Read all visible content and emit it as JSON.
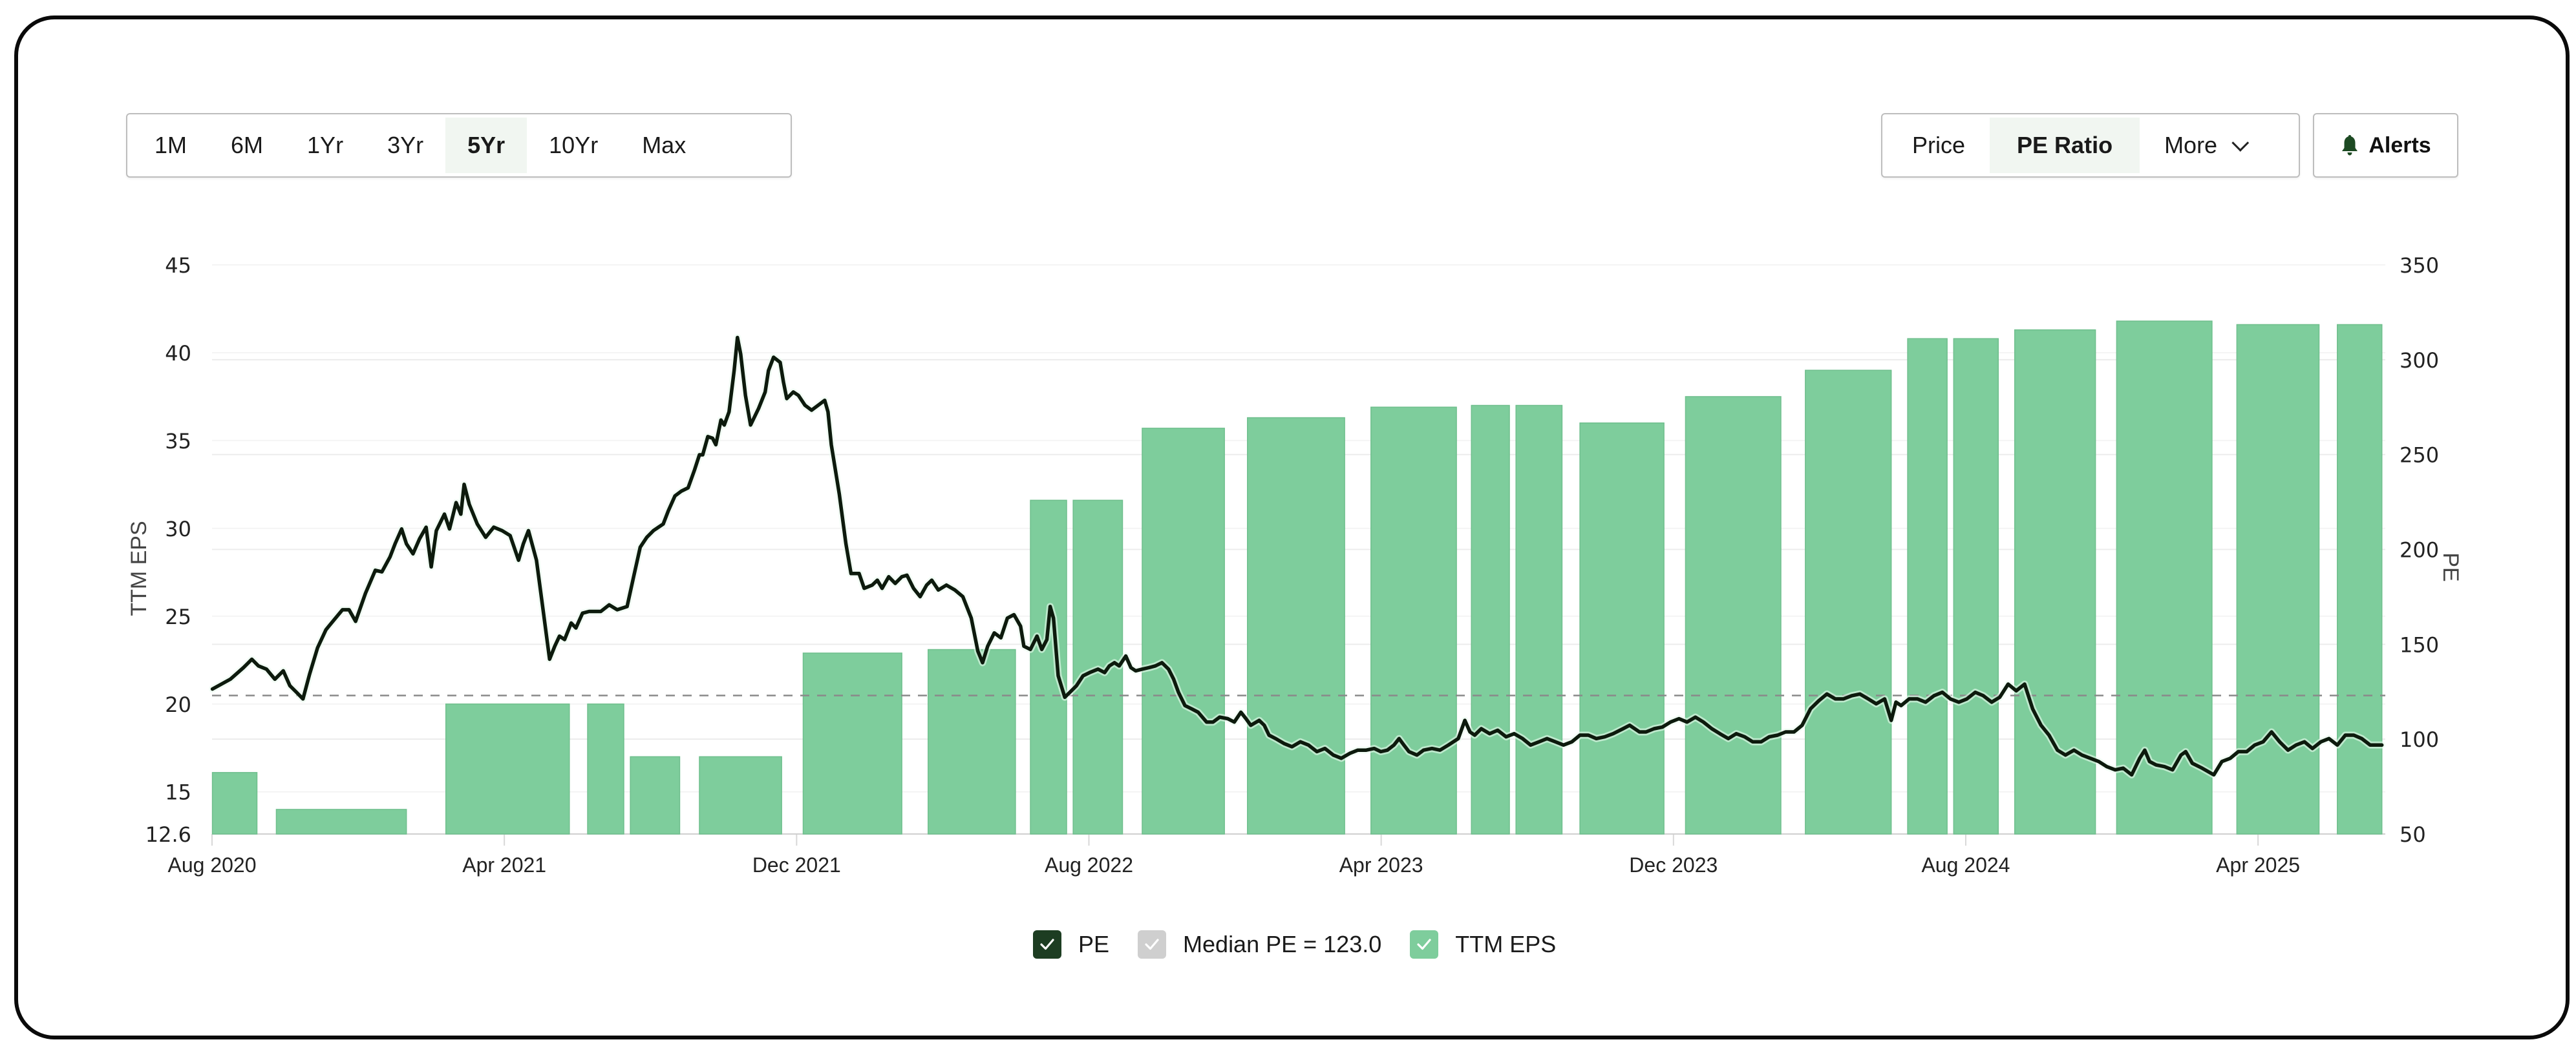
{
  "time_range": {
    "buttons": [
      "1M",
      "6M",
      "1Yr",
      "3Yr",
      "5Yr",
      "10Yr",
      "Max"
    ],
    "active": "5Yr"
  },
  "metric_tabs": {
    "price": "Price",
    "pe_ratio": "PE Ratio",
    "more": "More",
    "active": "PE Ratio"
  },
  "alerts": {
    "label": "Alerts",
    "icon": "bell-icon"
  },
  "legend": {
    "pe": "PE",
    "median": "Median PE = 123.0",
    "eps": "TTM EPS"
  },
  "colors": {
    "bar": "#7ecd9c",
    "line": "#0d1a0d",
    "median": "#8a8a8a",
    "legend_pe": "#1d3d22",
    "legend_median": "#cfcfcf",
    "legend_eps": "#7ecd9c",
    "active_tab_bg": "#f1f6f1",
    "bell": "#1d4a23"
  },
  "chart_data": {
    "type": "bar+line",
    "title": "",
    "xlabel": "",
    "ylabel_left": "TTM EPS",
    "ylabel_right": "PE",
    "x_ticks": [
      "Aug 2020",
      "Apr 2021",
      "Dec 2021",
      "Aug 2022",
      "Apr 2023",
      "Dec 2023",
      "Aug 2024",
      "Apr 2025"
    ],
    "x_tick_months": [
      0,
      8,
      16,
      24,
      32,
      40,
      48,
      56
    ],
    "x_units": "months since Aug 2020",
    "y_left_ticks": [
      "45",
      "40",
      "35",
      "30",
      "25",
      "20",
      "15",
      "12.6"
    ],
    "y_left_values": [
      45,
      40,
      35,
      30,
      25,
      20,
      15,
      12.6
    ],
    "y_left_range": [
      12.6,
      45
    ],
    "y_right_ticks": [
      "350",
      "300",
      "250",
      "200",
      "150",
      "100",
      "50"
    ],
    "y_right_values": [
      350,
      300,
      250,
      200,
      150,
      100,
      50
    ],
    "y_right_range": [
      50,
      350
    ],
    "grid": true,
    "legend_position": "bottom",
    "median_pe": 123.0,
    "series": [
      {
        "name": "TTM EPS",
        "type": "bar",
        "axis": "left",
        "bars": [
          {
            "start": 0.01,
            "end": 1.23,
            "value": 16.1
          },
          {
            "start": 1.76,
            "end": 5.32,
            "value": 14.0
          },
          {
            "start": 6.4,
            "end": 9.78,
            "value": 20.0
          },
          {
            "start": 10.28,
            "end": 11.27,
            "value": 20.0
          },
          {
            "start": 11.45,
            "end": 12.8,
            "value": 17.0
          },
          {
            "start": 13.34,
            "end": 15.59,
            "value": 17.0
          },
          {
            "start": 16.18,
            "end": 18.88,
            "value": 22.9
          },
          {
            "start": 19.6,
            "end": 21.99,
            "value": 23.1
          },
          {
            "start": 22.4,
            "end": 23.39,
            "value": 31.6
          },
          {
            "start": 23.57,
            "end": 24.92,
            "value": 31.6
          },
          {
            "start": 25.46,
            "end": 27.71,
            "value": 35.7
          },
          {
            "start": 28.34,
            "end": 31.0,
            "value": 36.3
          },
          {
            "start": 31.72,
            "end": 34.06,
            "value": 36.9
          },
          {
            "start": 34.47,
            "end": 35.51,
            "value": 37.0
          },
          {
            "start": 35.69,
            "end": 36.95,
            "value": 37.0
          },
          {
            "start": 37.44,
            "end": 39.74,
            "value": 36.0
          },
          {
            "start": 40.33,
            "end": 42.94,
            "value": 37.5
          },
          {
            "start": 43.61,
            "end": 45.96,
            "value": 39.0
          },
          {
            "start": 46.41,
            "end": 47.49,
            "value": 40.8
          },
          {
            "start": 47.67,
            "end": 48.89,
            "value": 40.8
          },
          {
            "start": 49.34,
            "end": 51.55,
            "value": 41.3
          },
          {
            "start": 52.13,
            "end": 54.74,
            "value": 41.8
          },
          {
            "start": 55.42,
            "end": 57.67,
            "value": 41.6
          },
          {
            "start": 58.17,
            "end": 59.39,
            "value": 41.6
          }
        ]
      },
      {
        "name": "PE",
        "type": "line",
        "axis": "right",
        "x": [
          0.01,
          0.5,
          0.86,
          1.09,
          1.27,
          1.49,
          1.72,
          1.95,
          2.13,
          2.31,
          2.49,
          2.67,
          2.89,
          3.12,
          3.34,
          3.57,
          3.75,
          3.93,
          4.2,
          4.47,
          4.65,
          4.87,
          5.01,
          5.19,
          5.32,
          5.5,
          5.68,
          5.86,
          6.0,
          6.14,
          6.36,
          6.5,
          6.68,
          6.81,
          6.9,
          7.04,
          7.26,
          7.49,
          7.71,
          7.94,
          8.16,
          8.39,
          8.52,
          8.66,
          8.88,
          9.06,
          9.24,
          9.38,
          9.51,
          9.65,
          9.83,
          9.96,
          10.14,
          10.32,
          10.64,
          10.87,
          11.09,
          11.36,
          11.54,
          11.72,
          11.9,
          12.08,
          12.35,
          12.49,
          12.67,
          12.85,
          13.03,
          13.21,
          13.34,
          13.43,
          13.57,
          13.7,
          13.79,
          13.93,
          14.02,
          14.15,
          14.29,
          14.38,
          14.47,
          14.6,
          14.74,
          14.96,
          15.14,
          15.23,
          15.37,
          15.55,
          15.64,
          15.73,
          15.91,
          16.05,
          16.23,
          16.41,
          16.59,
          16.77,
          16.86,
          16.95,
          17.17,
          17.35,
          17.49,
          17.71,
          17.85,
          18.07,
          18.21,
          18.34,
          18.52,
          18.7,
          18.88,
          19.02,
          19.2,
          19.38,
          19.56,
          19.7,
          19.88,
          20.1,
          20.33,
          20.55,
          20.78,
          20.96,
          21.09,
          21.23,
          21.41,
          21.59,
          21.77,
          21.95,
          22.13,
          22.22,
          22.4,
          22.58,
          22.71,
          22.85,
          22.94,
          23.03,
          23.16,
          23.34,
          23.48,
          23.66,
          23.84,
          24.02,
          24.25,
          24.43,
          24.56,
          24.7,
          24.83,
          25.01,
          25.15,
          25.28,
          25.46,
          25.64,
          25.82,
          26.0,
          26.18,
          26.32,
          26.45,
          26.63,
          26.81,
          26.99,
          27.22,
          27.4,
          27.58,
          27.8,
          27.98,
          28.16,
          28.3,
          28.43,
          28.66,
          28.8,
          28.93,
          29.11,
          29.34,
          29.56,
          29.79,
          30.01,
          30.24,
          30.46,
          30.69,
          30.91,
          31.14,
          31.36,
          31.59,
          31.81,
          31.99,
          32.17,
          32.35,
          32.49,
          32.62,
          32.76,
          32.98,
          33.16,
          33.39,
          33.61,
          33.84,
          34.11,
          34.29,
          34.43,
          34.56,
          34.74,
          34.97,
          35.19,
          35.42,
          35.64,
          35.87,
          36.09,
          36.32,
          36.54,
          36.77,
          36.99,
          37.22,
          37.44,
          37.67,
          37.89,
          38.12,
          38.35,
          38.62,
          38.8,
          39.07,
          39.25,
          39.47,
          39.7,
          39.92,
          40.15,
          40.37,
          40.6,
          40.82,
          41.05,
          41.27,
          41.5,
          41.72,
          41.95,
          42.17,
          42.4,
          42.62,
          42.85,
          43.07,
          43.3,
          43.52,
          43.75,
          43.98,
          44.2,
          44.43,
          44.65,
          44.88,
          45.1,
          45.33,
          45.55,
          45.78,
          45.96,
          46.09,
          46.23,
          46.45,
          46.68,
          46.9,
          47.13,
          47.36,
          47.58,
          47.81,
          48.03,
          48.26,
          48.48,
          48.71,
          48.93,
          49.16,
          49.38,
          49.61,
          49.83,
          50.06,
          50.28,
          50.51,
          50.73,
          50.96,
          51.18,
          51.41,
          51.64,
          51.86,
          52.09,
          52.31,
          52.54,
          52.76,
          52.9,
          53.03,
          53.21,
          53.44,
          53.66,
          53.89,
          54.02,
          54.2,
          54.47,
          54.79,
          55.01,
          55.24,
          55.46,
          55.69,
          55.91,
          56.14,
          56.37,
          56.59,
          56.82,
          57.04,
          57.27,
          57.49,
          57.72,
          57.94,
          58.17,
          58.39,
          58.62,
          58.84,
          59.07,
          59.39
        ],
        "values": [
          126.4,
          131.6,
          137.7,
          142.1,
          138.6,
          136.9,
          131.6,
          136.0,
          128.2,
          124.7,
          121.2,
          134.2,
          148.2,
          157.7,
          162.9,
          168.2,
          168.2,
          162.1,
          176.9,
          189.0,
          188.2,
          196.0,
          203.0,
          210.8,
          203.0,
          197.7,
          205.6,
          211.7,
          190.8,
          209.9,
          218.6,
          210.8,
          224.7,
          218.6,
          234.3,
          223.8,
          213.4,
          206.4,
          211.7,
          209.9,
          207.3,
          194.3,
          203.0,
          209.9,
          194.3,
          168.2,
          142.1,
          149.0,
          154.3,
          152.5,
          161.2,
          158.6,
          166.4,
          167.3,
          167.3,
          170.8,
          168.2,
          169.9,
          185.6,
          201.2,
          206.4,
          209.9,
          213.4,
          220.4,
          228.2,
          230.8,
          232.5,
          242.1,
          249.9,
          249.9,
          259.5,
          258.6,
          255.2,
          268.2,
          265.6,
          272.5,
          294.3,
          311.7,
          303.0,
          281.2,
          265.6,
          274.3,
          283.0,
          294.3,
          301.3,
          298.6,
          288.2,
          279.5,
          283.0,
          281.2,
          276.0,
          273.4,
          276.0,
          278.6,
          272.5,
          255.2,
          229.1,
          203.0,
          187.3,
          187.3,
          179.5,
          181.2,
          183.8,
          179.5,
          185.6,
          182.1,
          185.6,
          186.4,
          179.5,
          175.1,
          181.2,
          183.8,
          178.6,
          181.2,
          178.6,
          175.1,
          163.8,
          146.4,
          140.3,
          149.0,
          156.0,
          153.4,
          163.8,
          165.6,
          159.5,
          149.0,
          147.3,
          154.3,
          147.3,
          152.5,
          169.9,
          163.8,
          133.4,
          122.1,
          124.7,
          128.2,
          133.4,
          135.1,
          136.9,
          135.1,
          138.6,
          140.3,
          138.6,
          143.8,
          137.7,
          136.0,
          136.9,
          137.7,
          138.6,
          140.3,
          136.9,
          131.6,
          124.7,
          117.7,
          116.0,
          114.2,
          109.0,
          109.0,
          111.6,
          110.8,
          109.0,
          114.2,
          110.8,
          107.3,
          109.9,
          107.3,
          102.1,
          100.3,
          97.7,
          96.0,
          98.6,
          96.9,
          93.4,
          95.1,
          91.6,
          89.9,
          92.5,
          94.2,
          94.2,
          95.1,
          93.4,
          94.2,
          96.9,
          100.3,
          96.9,
          93.4,
          91.6,
          94.2,
          95.1,
          94.2,
          96.9,
          100.3,
          109.9,
          103.8,
          102.1,
          105.5,
          102.9,
          104.7,
          101.2,
          102.9,
          100.3,
          96.9,
          98.6,
          100.3,
          98.6,
          96.9,
          98.6,
          102.1,
          102.1,
          100.3,
          101.2,
          102.9,
          105.5,
          107.3,
          103.8,
          103.8,
          105.5,
          106.4,
          109.0,
          110.8,
          109.0,
          111.6,
          109.0,
          105.5,
          102.9,
          100.3,
          102.9,
          101.2,
          98.6,
          98.6,
          101.2,
          102.1,
          103.8,
          103.8,
          107.3,
          116.0,
          120.3,
          123.8,
          121.2,
          121.2,
          122.9,
          123.8,
          121.2,
          118.6,
          121.2,
          109.9,
          119.5,
          117.7,
          121.2,
          121.2,
          119.5,
          122.9,
          124.7,
          121.2,
          119.5,
          121.2,
          124.7,
          122.9,
          119.5,
          122.1,
          129.0,
          125.5,
          129.0,
          116.0,
          107.3,
          102.1,
          94.2,
          91.6,
          94.2,
          91.6,
          89.9,
          88.2,
          85.5,
          83.8,
          84.7,
          81.2,
          89.9,
          94.2,
          88.2,
          86.4,
          85.5,
          83.8,
          91.6,
          93.4,
          87.3,
          84.7,
          81.2,
          88.2,
          89.9,
          93.4,
          93.4,
          96.9,
          98.6,
          103.8,
          98.6,
          94.2,
          96.9,
          98.6,
          95.1,
          98.6,
          100.3,
          96.9,
          102.1,
          102.1,
          100.3,
          96.9,
          96.9
        ]
      },
      {
        "name": "Median PE = 123.0",
        "type": "hline",
        "axis": "right",
        "value": 123.0
      }
    ]
  }
}
